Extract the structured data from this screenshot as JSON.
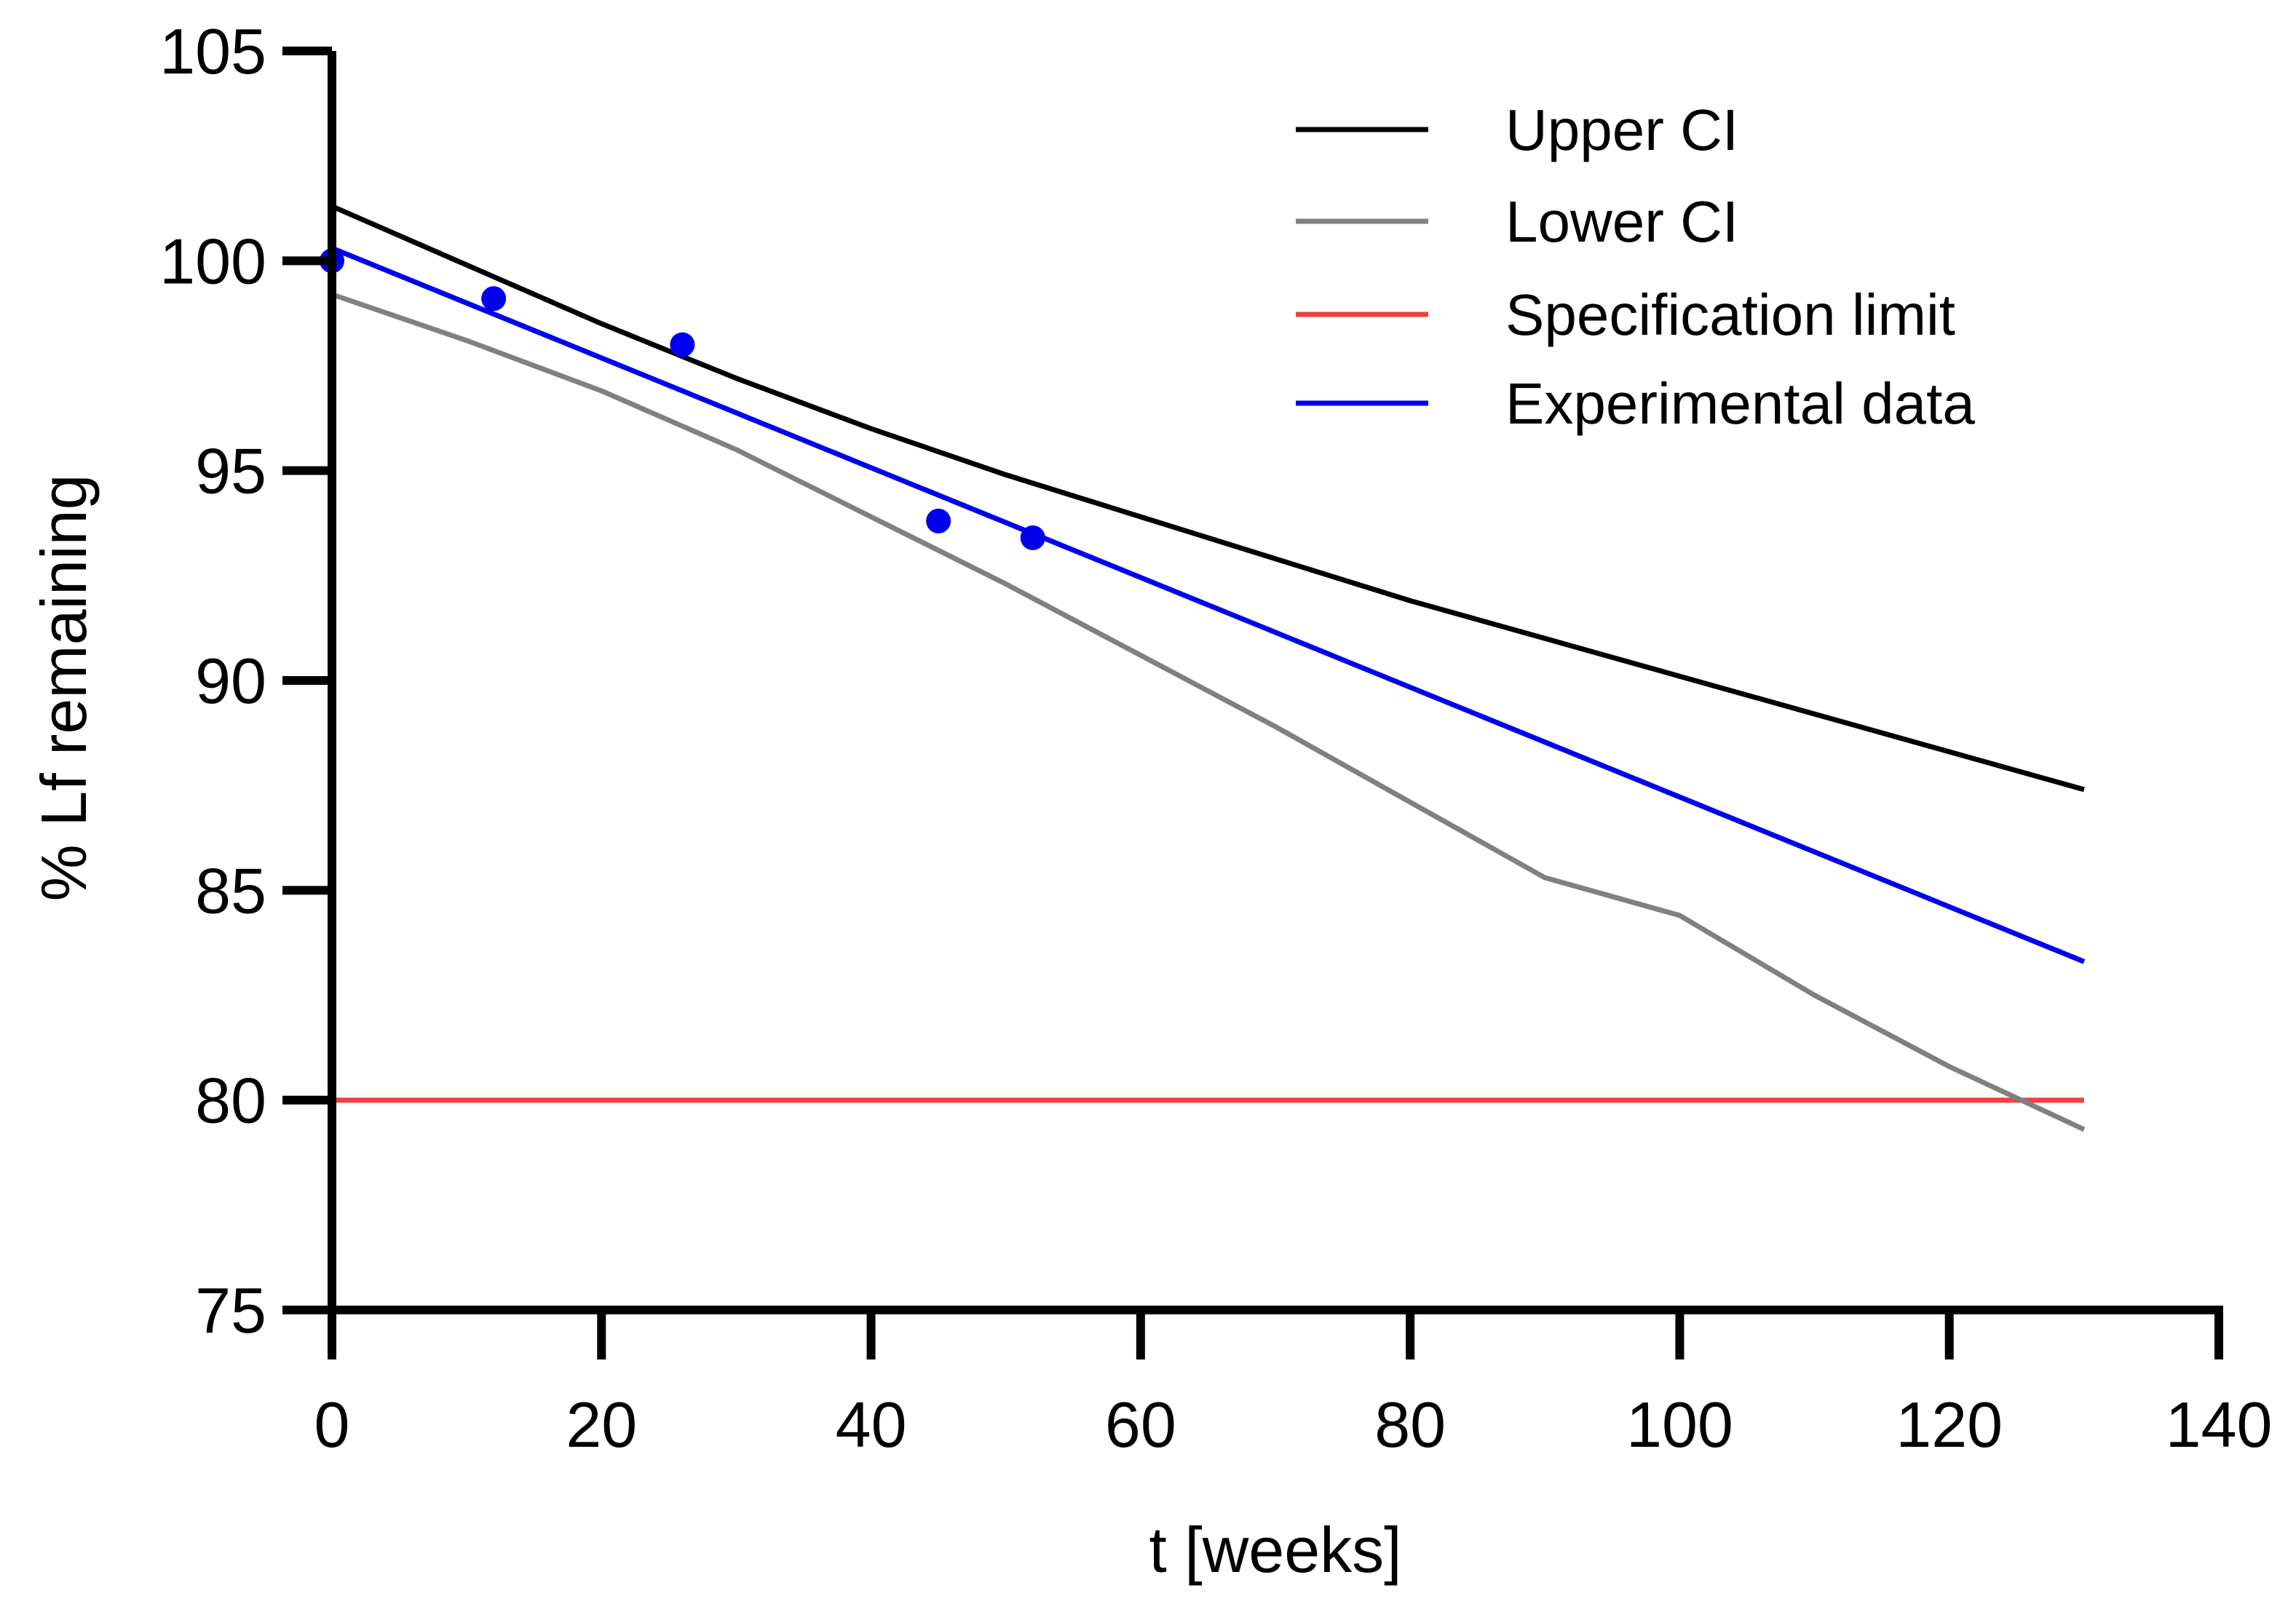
{
  "chart_data": {
    "type": "line",
    "title": "",
    "xlabel": "t [weeks]",
    "ylabel": "% Lf remaining",
    "xlim": [
      0,
      140
    ],
    "ylim": [
      75,
      105
    ],
    "xticks": [
      0,
      20,
      40,
      60,
      80,
      100,
      120,
      140
    ],
    "yticks": [
      75,
      80,
      85,
      90,
      95,
      100,
      105
    ],
    "grid": false,
    "legend_position": "top-right",
    "series": [
      {
        "name": "Upper CI",
        "color": "#000000",
        "style": "line",
        "x": [
          0,
          10,
          20,
          30,
          40,
          50,
          60,
          70,
          80,
          90,
          100,
          110,
          120,
          130
        ],
        "y": [
          101.3,
          99.9,
          98.5,
          97.2,
          96.0,
          94.9,
          93.9,
          92.9,
          91.9,
          91.0,
          90.1,
          89.2,
          88.3,
          87.4
        ]
      },
      {
        "name": "Lower CI",
        "color": "#808080",
        "style": "line",
        "x": [
          0,
          10,
          20,
          30,
          40,
          50,
          60,
          70,
          80,
          90,
          100,
          110,
          120,
          130
        ],
        "y": [
          99.2,
          98.1,
          96.9,
          95.5,
          93.9,
          92.3,
          90.6,
          88.9,
          87.1,
          85.3,
          84.4,
          82.5,
          80.8,
          79.3
        ]
      },
      {
        "name": "Specification limit",
        "color": "#f04040",
        "style": "line",
        "x": [
          0,
          130
        ],
        "y": [
          80,
          80
        ]
      },
      {
        "name": "Experimental data",
        "color": "#0000ee",
        "style": "line",
        "x": [
          0,
          130
        ],
        "y": [
          100.3,
          83.3
        ]
      }
    ],
    "points": {
      "name": "Experimental data points",
      "color": "#0000ee",
      "x": [
        0,
        12,
        26,
        45,
        52
      ],
      "y": [
        100.0,
        99.1,
        98.0,
        93.8,
        93.4
      ]
    }
  }
}
